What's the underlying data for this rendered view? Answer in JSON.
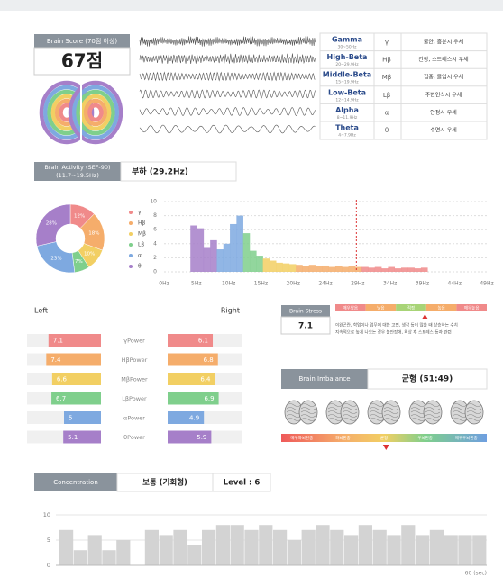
{
  "brain_score": {
    "label": "Brain Score (70점 이상)",
    "score": "67점"
  },
  "waves": [
    {
      "name": "Gamma",
      "range": "30~50Hz",
      "symbol": "γ",
      "desc": "불안, 흥분시 우세"
    },
    {
      "name": "High-Beta",
      "range": "20~29.9Hz",
      "symbol": "Hβ",
      "desc": "긴장, 스트레스시 우세"
    },
    {
      "name": "Middle-Beta",
      "range": "15~19.9Hz",
      "symbol": "Mβ",
      "desc": "집중, 몰입시 우세"
    },
    {
      "name": "Low-Beta",
      "range": "12~14.9Hz",
      "symbol": "Lβ",
      "desc": "주변인식시 우세"
    },
    {
      "name": "Alpha",
      "range": "8~11.9Hz",
      "symbol": "α",
      "desc": "안정시 우세"
    },
    {
      "name": "Theta",
      "range": "4~7.9Hz",
      "symbol": "θ",
      "desc": "수면시 우세"
    }
  ],
  "brain_activity": {
    "label": "Brain Activity (SEF-90)",
    "range": "(11.7~19.5Hz)",
    "result": "부하 (29.2Hz)"
  },
  "chart_data": [
    {
      "type": "pie",
      "categories": [
        "γ",
        "Hβ",
        "Mβ",
        "Lβ",
        "α",
        "θ"
      ],
      "values": [
        12,
        18,
        10,
        7,
        23,
        28
      ],
      "value_labels": [
        "12%",
        "18%",
        "10%",
        "7%",
        "23%",
        "28%"
      ],
      "colors": [
        "#f08a8a",
        "#f5ad6b",
        "#f2cf63",
        "#7fcf8c",
        "#7ea9e0",
        "#a67fc9"
      ]
    },
    {
      "type": "area",
      "xlim": [
        0,
        49
      ],
      "ylim": [
        0,
        10
      ],
      "yticks": [
        0,
        2,
        4,
        6,
        8,
        10
      ],
      "xticks": [
        {
          "value": 0,
          "label": "0Hz"
        },
        {
          "value": 4.9,
          "label": "5Hz"
        },
        {
          "value": 9.8,
          "label": "10Hz"
        },
        {
          "value": 14.7,
          "label": "15Hz"
        },
        {
          "value": 19.6,
          "label": "20Hz"
        },
        {
          "value": 24.5,
          "label": "24Hz"
        },
        {
          "value": 29.4,
          "label": "29Hz"
        },
        {
          "value": 34.3,
          "label": "34Hz"
        },
        {
          "value": 39.2,
          "label": "39Hz"
        },
        {
          "value": 44.1,
          "label": "44Hz"
        },
        {
          "value": 49,
          "label": "49Hz"
        }
      ],
      "marker": 29.2,
      "grid": true,
      "series": [
        {
          "color": "#a67fc9",
          "x": [
            4,
            5,
            6,
            7
          ],
          "values": [
            6.6,
            6.2,
            3.4,
            4.5
          ]
        },
        {
          "color": "#7ea9e0",
          "x": [
            8,
            9,
            10,
            11
          ],
          "values": [
            3.2,
            4.0,
            6.8,
            8.0
          ]
        },
        {
          "color": "#7fcf8c",
          "x": [
            12,
            13,
            14
          ],
          "values": [
            5.5,
            3.0,
            2.3
          ]
        },
        {
          "color": "#f2cf63",
          "x": [
            15,
            16,
            17,
            18,
            19
          ],
          "values": [
            1.9,
            1.6,
            1.3,
            1.2,
            1.1
          ]
        },
        {
          "color": "#f5ad6b",
          "x": [
            20,
            21,
            22,
            23,
            24,
            25,
            26,
            27,
            28,
            29
          ],
          "values": [
            1.0,
            0.8,
            1.0,
            0.8,
            0.9,
            0.7,
            0.8,
            0.7,
            0.8,
            0.7
          ]
        },
        {
          "color": "#f08a8a",
          "x": [
            30,
            31,
            32,
            33,
            34,
            35,
            36,
            37,
            38,
            39
          ],
          "values": [
            0.7,
            0.6,
            0.7,
            0.5,
            0.7,
            0.5,
            0.6,
            0.6,
            0.5,
            0.6
          ]
        }
      ]
    },
    {
      "type": "bar",
      "values": [
        7,
        3,
        6,
        3,
        5,
        0,
        7,
        6,
        7,
        4,
        7,
        8,
        8,
        7,
        8,
        7,
        5,
        7,
        8,
        7,
        6,
        8,
        7,
        6,
        8,
        6,
        7,
        6,
        6,
        6
      ],
      "color": "#d3d3d3",
      "ylim": [
        0,
        10
      ],
      "yticks": [
        0,
        5,
        10
      ],
      "grid": true,
      "xlabel": "60 (sec)"
    }
  ],
  "left_right": {
    "left_title": "Left",
    "right_title": "Right",
    "xlim": [
      0,
      10
    ],
    "rows": [
      {
        "label": "γPower",
        "left": 7.1,
        "right": 6.1,
        "color": "#f08a8a"
      },
      {
        "label": "HβPower",
        "left": 7.4,
        "right": 6.8,
        "color": "#f5ad6b"
      },
      {
        "label": "MβPower",
        "left": 6.6,
        "right": 6.4,
        "color": "#f2cf63"
      },
      {
        "label": "LβPower",
        "left": 6.7,
        "right": 6.9,
        "color": "#7fcf8c"
      },
      {
        "label": "αPower",
        "left": 5,
        "right": 4.9,
        "color": "#7ea9e0"
      },
      {
        "label": "θPower",
        "left": 5.1,
        "right": 5.9,
        "color": "#a67fc9"
      }
    ]
  },
  "brain_stress": {
    "label": "Brain Stress",
    "score": 7.1,
    "scale_range": [
      0,
      12
    ],
    "levels": [
      "매우낮음",
      "낮음",
      "적정",
      "높음",
      "매우높음"
    ],
    "desc": [
      "이완곤란, 학업이나 업무에 대한 고민, 생각 등이 많을 때 상승하는 수치",
      "지속적으로 높게 나오는 경우 불안장애, 외상 후 스트레스 등과 관련"
    ]
  },
  "brain_imbalance": {
    "label": "Brain Imbalance",
    "result": "균형 (51:49)",
    "left_ratio": 51,
    "scale_range": [
      0,
      100
    ],
    "levels": [
      "매우좌뇌편중",
      "좌뇌편중",
      "균형",
      "우뇌편중",
      "매우우뇌편중"
    ]
  },
  "concentration": {
    "label": "Concentration",
    "result": "보통 (기회형)",
    "level": "Level : 6"
  }
}
